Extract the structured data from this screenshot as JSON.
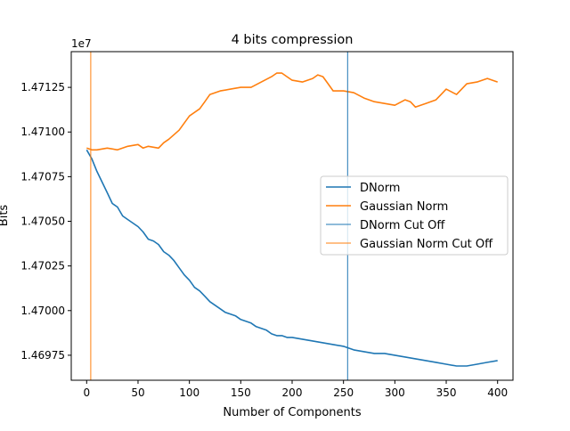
{
  "chart_data": {
    "type": "line",
    "title": "4 bits compression",
    "xlabel": "Number of Components",
    "ylabel": "Bits",
    "y_offset_label": "1e7",
    "xlim": [
      -15,
      415
    ],
    "ylim": [
      1.46961,
      1.47145
    ],
    "x_ticks": [
      {
        "value": 0,
        "label": "0"
      },
      {
        "value": 50,
        "label": "50"
      },
      {
        "value": 100,
        "label": "100"
      },
      {
        "value": 150,
        "label": "150"
      },
      {
        "value": 200,
        "label": "200"
      },
      {
        "value": 250,
        "label": "250"
      },
      {
        "value": 300,
        "label": "300"
      },
      {
        "value": 350,
        "label": "350"
      },
      {
        "value": 400,
        "label": "400"
      }
    ],
    "y_ticks": [
      {
        "value": 1.46975,
        "label": "1.46975"
      },
      {
        "value": 1.47,
        "label": "1.47000"
      },
      {
        "value": 1.47025,
        "label": "1.47025"
      },
      {
        "value": 1.4705,
        "label": "1.47050"
      },
      {
        "value": 1.47075,
        "label": "1.47075"
      },
      {
        "value": 1.471,
        "label": "1.47100"
      },
      {
        "value": 1.47125,
        "label": "1.47125"
      }
    ],
    "grid": false,
    "legend_position": "center-right",
    "series": [
      {
        "name": "DNorm",
        "color": "#1f77b4",
        "x": [
          0,
          5,
          10,
          15,
          20,
          25,
          30,
          35,
          40,
          45,
          50,
          55,
          60,
          65,
          70,
          75,
          80,
          85,
          90,
          95,
          100,
          105,
          110,
          115,
          120,
          125,
          130,
          135,
          140,
          145,
          150,
          155,
          160,
          165,
          170,
          175,
          180,
          185,
          190,
          195,
          200,
          210,
          220,
          230,
          240,
          250,
          260,
          270,
          280,
          290,
          300,
          310,
          320,
          330,
          340,
          350,
          360,
          370,
          380,
          390,
          400
        ],
        "values": [
          1.4709,
          1.47085,
          1.47078,
          1.47072,
          1.47066,
          1.4706,
          1.47058,
          1.47053,
          1.47051,
          1.47049,
          1.47047,
          1.47044,
          1.4704,
          1.47039,
          1.47037,
          1.47033,
          1.47031,
          1.47028,
          1.47024,
          1.4702,
          1.47017,
          1.47013,
          1.47011,
          1.47008,
          1.47005,
          1.47003,
          1.47001,
          1.46999,
          1.46998,
          1.46997,
          1.46995,
          1.46994,
          1.46993,
          1.46991,
          1.4699,
          1.46989,
          1.46987,
          1.46986,
          1.46986,
          1.46985,
          1.46985,
          1.46984,
          1.46983,
          1.46982,
          1.46981,
          1.4698,
          1.46978,
          1.46977,
          1.46976,
          1.46976,
          1.46975,
          1.46974,
          1.46973,
          1.46972,
          1.46971,
          1.4697,
          1.46969,
          1.46969,
          1.4697,
          1.46971,
          1.46972
        ]
      },
      {
        "name": "Gaussian Norm",
        "color": "#ff7f0e",
        "x": [
          0,
          5,
          10,
          20,
          30,
          40,
          50,
          55,
          60,
          70,
          75,
          80,
          90,
          95,
          100,
          110,
          115,
          120,
          125,
          130,
          140,
          150,
          160,
          170,
          180,
          185,
          190,
          195,
          200,
          210,
          220,
          225,
          230,
          235,
          240,
          250,
          260,
          270,
          280,
          290,
          300,
          310,
          315,
          320,
          330,
          340,
          345,
          350,
          360,
          370,
          380,
          390,
          400
        ],
        "values": [
          1.47091,
          1.4709,
          1.4709,
          1.47091,
          1.4709,
          1.47092,
          1.47093,
          1.47091,
          1.47092,
          1.47091,
          1.47094,
          1.47096,
          1.47101,
          1.47105,
          1.47109,
          1.47113,
          1.47117,
          1.47121,
          1.47122,
          1.47123,
          1.47124,
          1.47125,
          1.47125,
          1.47128,
          1.47131,
          1.47133,
          1.47133,
          1.47131,
          1.47129,
          1.47128,
          1.4713,
          1.47132,
          1.47131,
          1.47127,
          1.47123,
          1.47123,
          1.47122,
          1.47119,
          1.47117,
          1.47116,
          1.47115,
          1.47118,
          1.47117,
          1.47114,
          1.47116,
          1.47118,
          1.47121,
          1.47124,
          1.47121,
          1.47127,
          1.47128,
          1.4713,
          1.47128
        ]
      },
      {
        "name": "DNorm Cut Off",
        "color": "#1f77b4",
        "vline_x": 254
      },
      {
        "name": "Gaussian Norm Cut Off",
        "color": "#ff7f0e",
        "vline_x": 4
      }
    ]
  }
}
